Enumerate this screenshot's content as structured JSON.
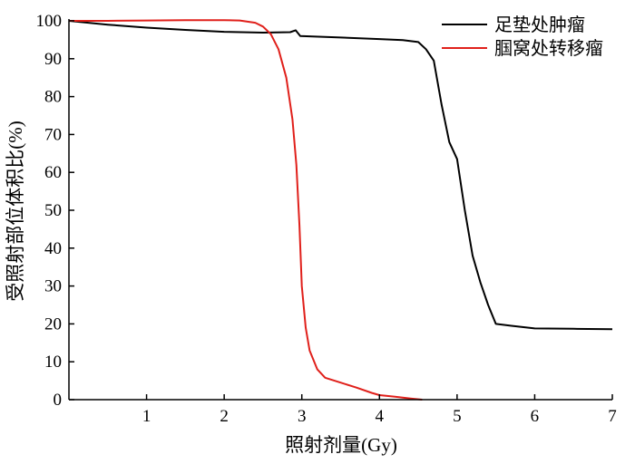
{
  "chart_data": {
    "type": "line",
    "title": "",
    "xlabel": "照射剂量(Gy)",
    "ylabel": "受照射部位体积比(%)",
    "xlim": [
      0,
      7
    ],
    "ylim": [
      0,
      100
    ],
    "x_ticks": [
      "1",
      "2",
      "3",
      "4",
      "5",
      "6",
      "7"
    ],
    "y_ticks": [
      "0",
      "10",
      "20",
      "30",
      "40",
      "50",
      "60",
      "70",
      "80",
      "90",
      "100"
    ],
    "grid": false,
    "legend_position": "top-right",
    "series": [
      {
        "name": "足垫处肿瘤",
        "color": "#000000",
        "points": [
          [
            0,
            100
          ],
          [
            0.5,
            99.0
          ],
          [
            1.0,
            98.2
          ],
          [
            1.5,
            97.6
          ],
          [
            2.0,
            97.1
          ],
          [
            2.5,
            96.9
          ],
          [
            2.85,
            97.0
          ],
          [
            2.92,
            97.5
          ],
          [
            2.98,
            96.0
          ],
          [
            3.5,
            95.6
          ],
          [
            4.0,
            95.2
          ],
          [
            4.3,
            94.9
          ],
          [
            4.5,
            94.4
          ],
          [
            4.6,
            92.5
          ],
          [
            4.7,
            89.5
          ],
          [
            4.8,
            78
          ],
          [
            4.9,
            68
          ],
          [
            5.0,
            63.5
          ],
          [
            5.1,
            50
          ],
          [
            5.2,
            38
          ],
          [
            5.3,
            31
          ],
          [
            5.4,
            25
          ],
          [
            5.5,
            20
          ],
          [
            5.7,
            19.5
          ],
          [
            6.0,
            18.8
          ],
          [
            6.5,
            18.7
          ],
          [
            7.0,
            18.6
          ]
        ]
      },
      {
        "name": "腘窝处转移瘤",
        "color": "#e0201b",
        "points": [
          [
            0,
            100
          ],
          [
            0.5,
            100
          ],
          [
            1.0,
            100.1
          ],
          [
            1.5,
            100.2
          ],
          [
            2.0,
            100.2
          ],
          [
            2.2,
            100.1
          ],
          [
            2.4,
            99.5
          ],
          [
            2.5,
            98.5
          ],
          [
            2.6,
            96.5
          ],
          [
            2.7,
            92.5
          ],
          [
            2.8,
            85
          ],
          [
            2.88,
            74
          ],
          [
            2.93,
            62
          ],
          [
            2.97,
            46
          ],
          [
            3.0,
            30
          ],
          [
            3.05,
            19
          ],
          [
            3.1,
            13
          ],
          [
            3.2,
            8
          ],
          [
            3.3,
            5.8
          ],
          [
            3.5,
            4.5
          ],
          [
            3.7,
            3.2
          ],
          [
            3.9,
            1.8
          ],
          [
            4.0,
            1.2
          ],
          [
            4.2,
            0.8
          ],
          [
            4.4,
            0.3
          ],
          [
            4.55,
            0
          ]
        ]
      }
    ]
  }
}
